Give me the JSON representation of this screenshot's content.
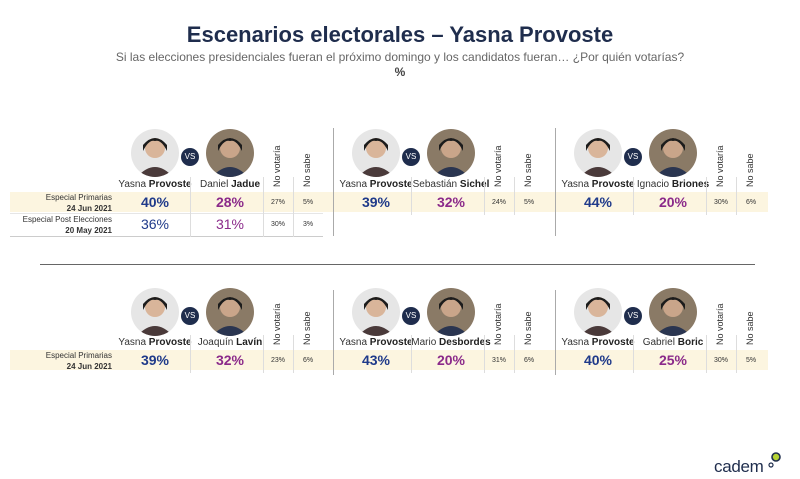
{
  "title": "Escenarios electorales – Yasna Provoste",
  "subtitle": "Si las elecciones presidenciales fueran el próximo domingo y los candidatos fueran… ¿Por quién votarías?",
  "unit": "%",
  "logo": "cadem",
  "vs_label": "VS",
  "colors": {
    "provoste": "#1f3a8a",
    "rival": "#8b2a8a",
    "band": "#fcf5e0",
    "navy": "#1f2d4d"
  },
  "chart_data": {
    "type": "table",
    "column_headers": {
      "no_votaria": "No votaría",
      "no_sabe": "No sabe"
    },
    "rows": [
      {
        "label_line1": "Especial Primarias",
        "label_line2": "24 Jun 2021"
      },
      {
        "label_line1": "Especial Post Elecciones",
        "label_line2": "20 May 2021"
      }
    ],
    "bottom_row_label": {
      "label_line1": "Especial Primarias",
      "label_line2": "24 Jun 2021"
    },
    "scenarios": [
      {
        "a_first": "Yasna",
        "a_last": "Provoste",
        "b_first": "Daniel",
        "b_last": "Jadue",
        "results": [
          {
            "a": "40%",
            "b": "28%",
            "no_votaria": "27%",
            "no_sabe": "5%"
          },
          {
            "a": "36%",
            "b": "31%",
            "no_votaria": "30%",
            "no_sabe": "3%"
          }
        ]
      },
      {
        "a_first": "Yasna",
        "a_last": "Provoste",
        "b_first": "Sebastián",
        "b_last": "Sichel",
        "results": [
          {
            "a": "39%",
            "b": "32%",
            "no_votaria": "24%",
            "no_sabe": "5%"
          }
        ]
      },
      {
        "a_first": "Yasna",
        "a_last": "Provoste",
        "b_first": "Ignacio",
        "b_last": "Briones",
        "results": [
          {
            "a": "44%",
            "b": "20%",
            "no_votaria": "30%",
            "no_sabe": "6%"
          }
        ]
      },
      {
        "a_first": "Yasna",
        "a_last": "Provoste",
        "b_first": "Joaquín",
        "b_last": "Lavín",
        "results": [
          {
            "a": "39%",
            "b": "32%",
            "no_votaria": "23%",
            "no_sabe": "6%"
          }
        ]
      },
      {
        "a_first": "Yasna",
        "a_last": "Provoste",
        "b_first": "Mario",
        "b_last": "Desbordes",
        "results": [
          {
            "a": "43%",
            "b": "20%",
            "no_votaria": "31%",
            "no_sabe": "6%"
          }
        ]
      },
      {
        "a_first": "Yasna",
        "a_last": "Provoste",
        "b_first": "Gabriel",
        "b_last": "Boric",
        "results": [
          {
            "a": "40%",
            "b": "25%",
            "no_votaria": "30%",
            "no_sabe": "5%"
          }
        ]
      }
    ]
  }
}
